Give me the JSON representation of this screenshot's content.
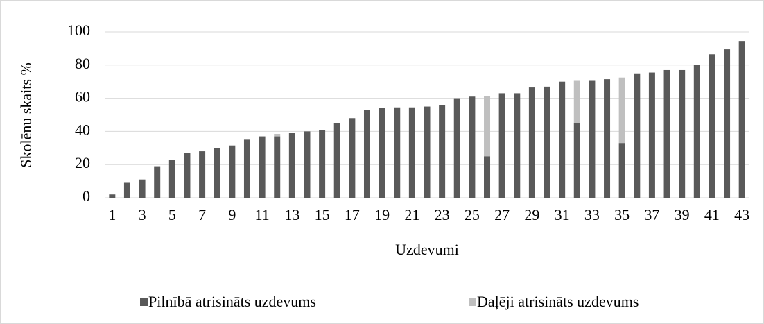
{
  "chart_data": {
    "type": "stacked_bar",
    "x_label": "Uzdevumi",
    "y_label": "Skolēnu skaits %",
    "categories": [
      "1",
      null,
      "3",
      null,
      "5",
      null,
      "7",
      null,
      "9",
      null,
      "11",
      null,
      "13",
      null,
      "15",
      null,
      "17",
      null,
      "19",
      null,
      "21",
      null,
      "23",
      null,
      "25",
      null,
      "27",
      null,
      "29",
      null,
      "31",
      null,
      "33",
      null,
      "35",
      null,
      "37",
      null,
      "39",
      null,
      "41",
      null,
      "43"
    ],
    "series": [
      {
        "name": "Pilnībā atrisināts uzdevums",
        "color": "#595959",
        "values": [
          2,
          9,
          11,
          19,
          23,
          27,
          28,
          30,
          31.5,
          35,
          37,
          37,
          39,
          40,
          41,
          45,
          48,
          53,
          54,
          54.5,
          54.5,
          55,
          56,
          60,
          61,
          25,
          63,
          63,
          66.5,
          67,
          70,
          45,
          70.5,
          71.5,
          33,
          75,
          75.5,
          77,
          77,
          80,
          86.5,
          89.5,
          94.5
        ]
      },
      {
        "name": "Daļēji atrisināts uzdevums",
        "color": "#bfbfbf",
        "values": [
          null,
          null,
          null,
          null,
          null,
          null,
          null,
          null,
          null,
          null,
          null,
          1.5,
          null,
          null,
          null,
          null,
          null,
          null,
          null,
          null,
          null,
          null,
          null,
          null,
          null,
          36.5,
          null,
          null,
          null,
          null,
          null,
          25.5,
          null,
          null,
          39.5,
          null,
          null,
          null,
          null,
          null,
          null,
          null,
          null
        ]
      }
    ],
    "ylim": [
      0,
      100
    ],
    "yticks": [
      0,
      20,
      40,
      60,
      80,
      100
    ],
    "grid": true,
    "legend": "bottom"
  }
}
